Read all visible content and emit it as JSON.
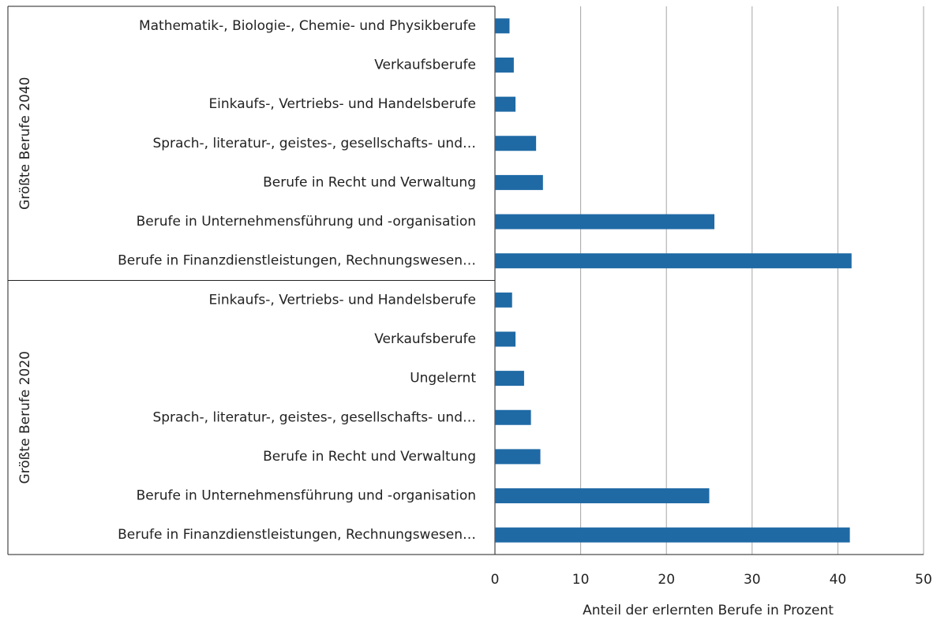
{
  "chart_data": {
    "type": "bar",
    "orientation": "horizontal",
    "groups": [
      {
        "name": "Größte Berufe 2040",
        "categories": [
          "Mathematik-, Biologie-, Chemie- und Physikberufe",
          "Verkaufsberufe",
          "Einkaufs-, Vertriebs- und Handelsberufe",
          "Sprach-, literatur-, geistes-, gesellschafts- und…",
          "Berufe in Recht und Verwaltung",
          "Berufe in Unternehmensführung und -organisation",
          "Berufe in Finanzdienstleistungen, Rechnungswesen…"
        ],
        "values": [
          1.7,
          2.2,
          2.4,
          4.8,
          5.6,
          25.6,
          41.6
        ]
      },
      {
        "name": "Größte Berufe 2020",
        "categories": [
          "Einkaufs-, Vertriebs- und Handelsberufe",
          "Verkaufsberufe",
          "Ungelernt",
          "Sprach-, literatur-, geistes-, gesellschafts- und…",
          "Berufe in Recht und Verwaltung",
          "Berufe in Unternehmensführung und -organisation",
          "Berufe in Finanzdienstleistungen, Rechnungswesen…"
        ],
        "values": [
          2.0,
          2.4,
          3.4,
          4.2,
          5.3,
          25.0,
          41.4
        ]
      }
    ],
    "color": "#1f6aa5",
    "xlabel": "Anteil der erlernten  Berufe in Prozent",
    "xlim": [
      0,
      50
    ],
    "xticks": [
      0,
      10,
      20,
      30,
      40,
      50
    ],
    "grid": true
  }
}
